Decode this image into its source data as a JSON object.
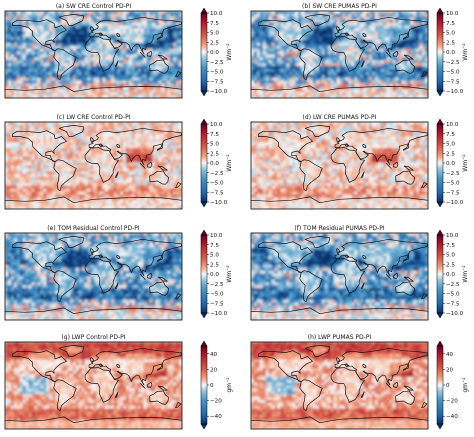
{
  "chart_data": [
    {
      "type": "heatmap",
      "title": "(a) SW CRE Control PD-PI",
      "colorbar": {
        "label": "Wm⁻²",
        "range": [
          -10,
          10
        ],
        "ticks": [
          "10.0",
          "7.5",
          "5.0",
          "2.5",
          "0.0",
          "−2.5",
          "−5.0",
          "−7.5",
          "−10.0"
        ]
      },
      "pattern": "sw"
    },
    {
      "type": "heatmap",
      "title": "(b) SW CRE PUMAS PD-PI",
      "colorbar": {
        "label": "Wm⁻²",
        "range": [
          -10,
          10
        ],
        "ticks": [
          "10.0",
          "7.5",
          "5.0",
          "2.5",
          "0.0",
          "−2.5",
          "−5.0",
          "−7.5",
          "−10.0"
        ]
      },
      "pattern": "sw"
    },
    {
      "type": "heatmap",
      "title": "(c) LW CRE Control PD-PI",
      "colorbar": {
        "label": "Wm⁻²",
        "range": [
          -10,
          10
        ],
        "ticks": [
          "10.0",
          "7.5",
          "5.0",
          "2.5",
          "0.0",
          "−2.5",
          "−5.0",
          "−7.5",
          "−10.0"
        ]
      },
      "pattern": "lw"
    },
    {
      "type": "heatmap",
      "title": "(d) LW CRE PUMAS PD-PI",
      "colorbar": {
        "label": "Wm⁻²",
        "range": [
          -10,
          10
        ],
        "ticks": [
          "10.0",
          "7.5",
          "5.0",
          "2.5",
          "0.0",
          "−2.5",
          "−5.0",
          "−7.5",
          "−10.0"
        ]
      },
      "pattern": "lw"
    },
    {
      "type": "heatmap",
      "title": "(e) TOM Residual Control PD-PI",
      "colorbar": {
        "label": "Wm⁻²",
        "range": [
          -10,
          10
        ],
        "ticks": [
          "10.0",
          "7.5",
          "5.0",
          "2.5",
          "0.0",
          "−2.5",
          "−5.0",
          "−7.5",
          "−10.0"
        ]
      },
      "pattern": "tom"
    },
    {
      "type": "heatmap",
      "title": "(f) TOM Residual PUMAS PD-PI",
      "colorbar": {
        "label": "Wm⁻²",
        "range": [
          -10,
          10
        ],
        "ticks": [
          "10.0",
          "7.5",
          "5.0",
          "2.5",
          "0.0",
          "−2.5",
          "−5.0",
          "−7.5",
          "−10.0"
        ]
      },
      "pattern": "tom"
    },
    {
      "type": "heatmap",
      "title": "(g) LWP Control PD-PI",
      "colorbar": {
        "label": "gm⁻²",
        "range": [
          -50,
          50
        ],
        "ticks": [
          "40",
          "20",
          "0",
          "−20",
          "−40"
        ]
      },
      "pattern": "lwp"
    },
    {
      "type": "heatmap",
      "title": "(h) LWP PUMAS PD-PI",
      "colorbar": {
        "label": "gm⁻²",
        "range": [
          -50,
          50
        ],
        "ticks": [
          "40",
          "20",
          "0",
          "−20",
          "−40"
        ]
      },
      "pattern": "lwp"
    }
  ],
  "colormap": {
    "negative": "#08306b",
    "neutral": "#f7f7f7",
    "positive": "#67001f"
  }
}
